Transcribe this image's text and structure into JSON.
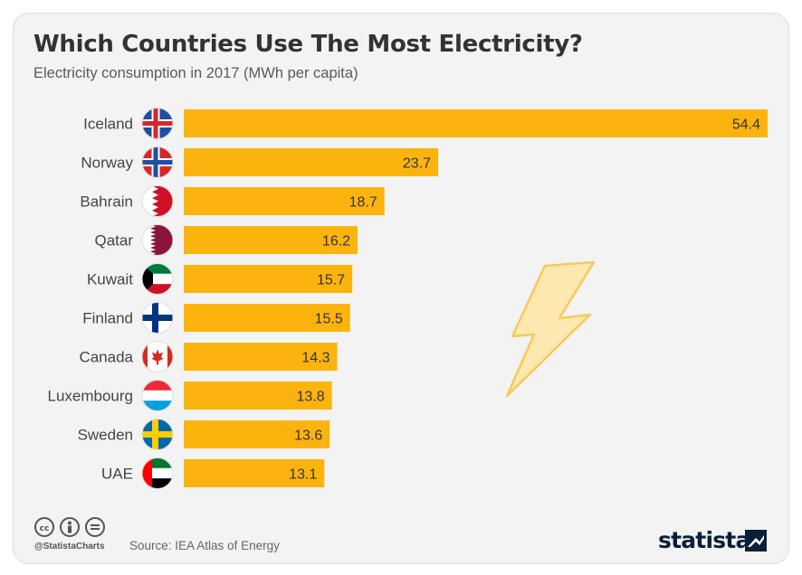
{
  "title": "Which Countries Use The Most Electricity?",
  "subtitle": "Electricity consumption in 2017 (MWh per capita)",
  "footer": {
    "handle": "@StatistaCharts",
    "source": "Source: IEA Atlas of Energy",
    "brand": "statista"
  },
  "colors": {
    "bar": "#fbb40e",
    "background": "#f3f3f3",
    "title": "#333333"
  },
  "chart_data": {
    "type": "bar",
    "orientation": "horizontal",
    "categories": [
      "Iceland",
      "Norway",
      "Bahrain",
      "Qatar",
      "Kuwait",
      "Finland",
      "Canada",
      "Luxembourg",
      "Sweden",
      "UAE"
    ],
    "values": [
      54.4,
      23.7,
      18.7,
      16.2,
      15.7,
      15.5,
      14.3,
      13.8,
      13.6,
      13.1
    ],
    "value_labels": [
      "54.4",
      "23.7",
      "18.7",
      "16.2",
      "15.7",
      "15.5",
      "14.3",
      "13.8",
      "13.6",
      "13.1"
    ],
    "flags": [
      "iceland-flag-icon",
      "norway-flag-icon",
      "bahrain-flag-icon",
      "qatar-flag-icon",
      "kuwait-flag-icon",
      "finland-flag-icon",
      "canada-flag-icon",
      "luxembourg-flag-icon",
      "sweden-flag-icon",
      "uae-flag-icon"
    ],
    "xlim": [
      0,
      54.4
    ],
    "grid": false,
    "legend": "none"
  }
}
